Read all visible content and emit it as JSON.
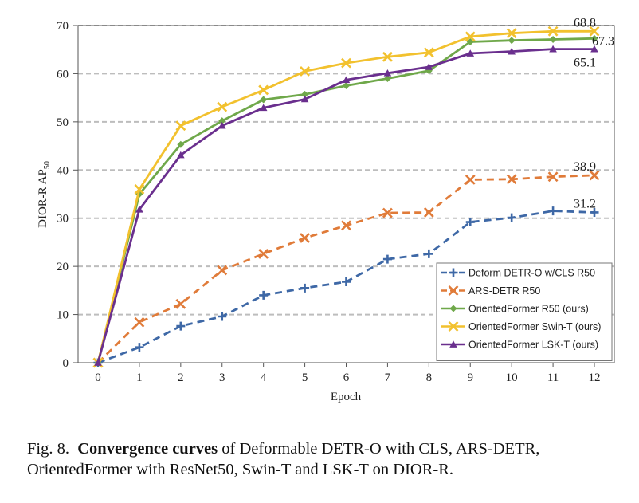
{
  "chart_data": {
    "type": "line",
    "xlabel": "Epoch",
    "ylabel": "DIOR-R AP",
    "ylabel_subscript": "50",
    "xlim": [
      0,
      12
    ],
    "ylim": [
      0,
      70
    ],
    "x": [
      0,
      1,
      2,
      3,
      4,
      5,
      6,
      7,
      8,
      9,
      10,
      11,
      12
    ],
    "x_ticks": [
      "0",
      "1",
      "2",
      "3",
      "4",
      "5",
      "6",
      "7",
      "8",
      "9",
      "10",
      "11",
      "12"
    ],
    "y_ticks": [
      0,
      10,
      20,
      30,
      40,
      50,
      60,
      70
    ],
    "grid": "horizontal dashed",
    "legend_position": "bottom-right",
    "series": [
      {
        "name": "Deform DETR-O w/CLS R50",
        "color": "#3E68A6",
        "line": "dashed",
        "marker": "plus",
        "values": [
          0,
          3.2,
          7.6,
          9.6,
          14.0,
          15.5,
          16.8,
          21.5,
          22.6,
          29.2,
          30.1,
          31.5,
          31.2
        ],
        "end_label": "31.2"
      },
      {
        "name": "ARS-DETR R50",
        "color": "#E07B39",
        "line": "dashed",
        "marker": "x",
        "values": [
          0,
          8.4,
          12.2,
          19.2,
          22.6,
          25.9,
          28.5,
          31.1,
          31.2,
          38.0,
          38.1,
          38.6,
          38.9
        ],
        "end_label": "38.9"
      },
      {
        "name": "OrientedFormer R50 (ours)",
        "color": "#6FA84A",
        "line": "solid",
        "marker": "diamond",
        "values": [
          0,
          35.0,
          45.3,
          50.2,
          54.6,
          55.7,
          57.5,
          59.0,
          60.6,
          66.6,
          66.9,
          67.1,
          67.3
        ],
        "end_label": "67.3"
      },
      {
        "name": "OrientedFormer Swin-T  (ours)",
        "color": "#F2C12E",
        "line": "solid",
        "marker": "x",
        "values": [
          0,
          36.0,
          49.2,
          53.1,
          56.6,
          60.5,
          62.2,
          63.5,
          64.4,
          67.7,
          68.4,
          68.8,
          68.8
        ],
        "end_label": "68.8"
      },
      {
        "name": "OrientedFormer LSK-T  (ours)",
        "color": "#6A2F8E",
        "line": "solid",
        "marker": "triangle",
        "values": [
          0,
          31.8,
          43.1,
          49.2,
          52.9,
          54.7,
          58.7,
          60.1,
          61.4,
          64.2,
          64.6,
          65.1,
          65.1
        ],
        "end_label": "65.1"
      }
    ]
  },
  "caption": {
    "label": "Fig. 8.",
    "bold": "Convergence curves",
    "rest": "of Deformable DETR-O with CLS, ARS-DETR, OrientedFormer with ResNet50, Swin-T and LSK-T on DIOR-R."
  }
}
